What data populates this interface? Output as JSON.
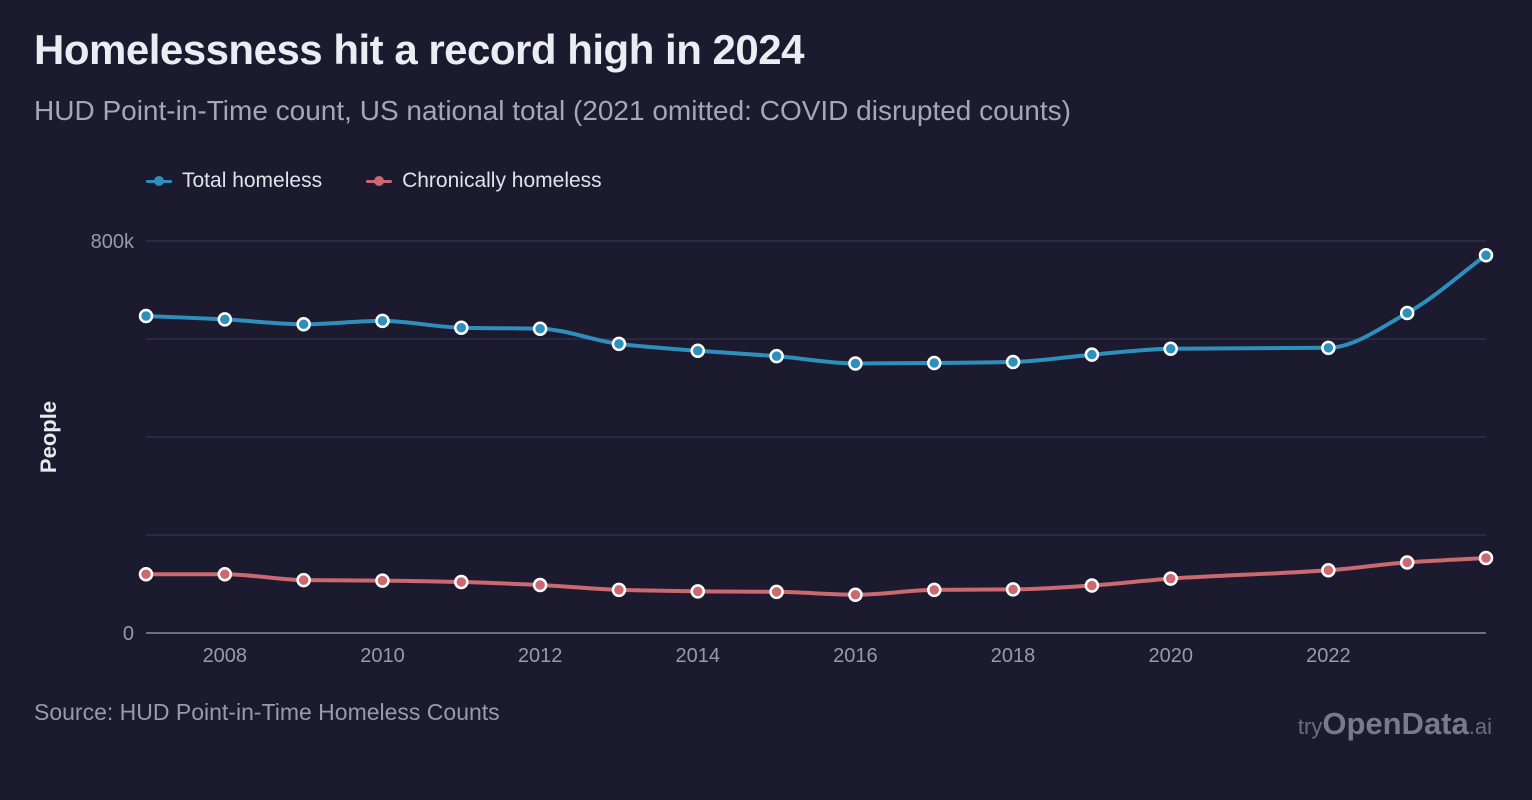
{
  "title": "Homelessness hit a record high in 2024",
  "subtitle": "HUD Point-in-Time count, US national total (2021 omitted: COVID disrupted counts)",
  "source": "Source: HUD Point-in-Time Homeless Counts",
  "brand": {
    "part1": "try",
    "part2": "OpenData",
    "part3": ".ai"
  },
  "chart_data": {
    "type": "line",
    "ylabel": "People",
    "ylim": [
      0,
      800000
    ],
    "xlim": [
      2007,
      2024
    ],
    "y_ticks": [
      {
        "value": 0,
        "label": "0"
      },
      {
        "value": 800000,
        "label": "800k"
      }
    ],
    "y_gridlines": [
      0,
      200000,
      400000,
      600000,
      800000
    ],
    "x_ticks": [
      2008,
      2010,
      2012,
      2014,
      2016,
      2018,
      2020,
      2022
    ],
    "legend_position": "top-left",
    "series": [
      {
        "name": "Total homeless",
        "color": "#2e8fbd",
        "points": [
          {
            "x": 2007,
            "y": 647000
          },
          {
            "x": 2008,
            "y": 640000
          },
          {
            "x": 2009,
            "y": 630000
          },
          {
            "x": 2010,
            "y": 637000
          },
          {
            "x": 2011,
            "y": 623000
          },
          {
            "x": 2012,
            "y": 621000
          },
          {
            "x": 2013,
            "y": 590000
          },
          {
            "x": 2014,
            "y": 576000
          },
          {
            "x": 2015,
            "y": 565000
          },
          {
            "x": 2016,
            "y": 550000
          },
          {
            "x": 2017,
            "y": 551000
          },
          {
            "x": 2018,
            "y": 553000
          },
          {
            "x": 2019,
            "y": 568000
          },
          {
            "x": 2020,
            "y": 580000
          },
          {
            "x": 2022,
            "y": 582000
          },
          {
            "x": 2023,
            "y": 653000
          },
          {
            "x": 2024,
            "y": 771000
          }
        ]
      },
      {
        "name": "Chronically homeless",
        "color": "#cc6870",
        "points": [
          {
            "x": 2007,
            "y": 120000
          },
          {
            "x": 2008,
            "y": 120000
          },
          {
            "x": 2009,
            "y": 108000
          },
          {
            "x": 2010,
            "y": 107000
          },
          {
            "x": 2011,
            "y": 104000
          },
          {
            "x": 2012,
            "y": 98000
          },
          {
            "x": 2013,
            "y": 88000
          },
          {
            "x": 2014,
            "y": 85000
          },
          {
            "x": 2015,
            "y": 84000
          },
          {
            "x": 2016,
            "y": 78000
          },
          {
            "x": 2017,
            "y": 88000
          },
          {
            "x": 2018,
            "y": 89000
          },
          {
            "x": 2019,
            "y": 97000
          },
          {
            "x": 2020,
            "y": 111000
          },
          {
            "x": 2022,
            "y": 128000
          },
          {
            "x": 2023,
            "y": 144000
          },
          {
            "x": 2024,
            "y": 153000
          }
        ]
      }
    ]
  }
}
